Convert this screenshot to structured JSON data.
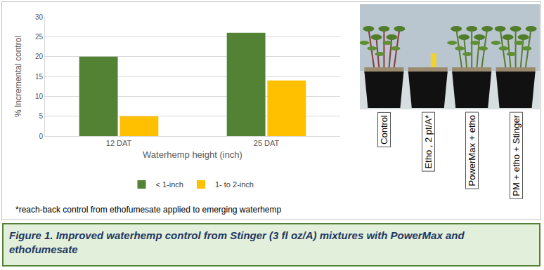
{
  "chart_data": {
    "type": "bar",
    "categories": [
      "12 DAT",
      "25 DAT"
    ],
    "series": [
      {
        "name": "< 1-inch",
        "color": "#548235",
        "values": [
          20,
          26
        ]
      },
      {
        "name": "1- to 2-inch",
        "color": "#ffc000",
        "values": [
          5,
          14
        ]
      }
    ],
    "x_label": "Waterhemp height (inch)",
    "y_label": "% Incremental control",
    "ylim": [
      0,
      30
    ],
    "yticks": [
      0,
      5,
      10,
      15,
      20,
      25,
      30
    ],
    "grid": true,
    "legend": "bottom"
  },
  "footnote": "*reach-back control from ethofumesate applied to emerging waterhemp",
  "photo_labels": [
    "Control",
    "Etho , 2 pt/A*",
    "PowerMax + etho",
    "PM + etho + Stinger"
  ],
  "caption": "Figure 1. Improved waterhemp control from Stinger (3 fl oz/A) mixtures with PowerMax and ethofumesate"
}
